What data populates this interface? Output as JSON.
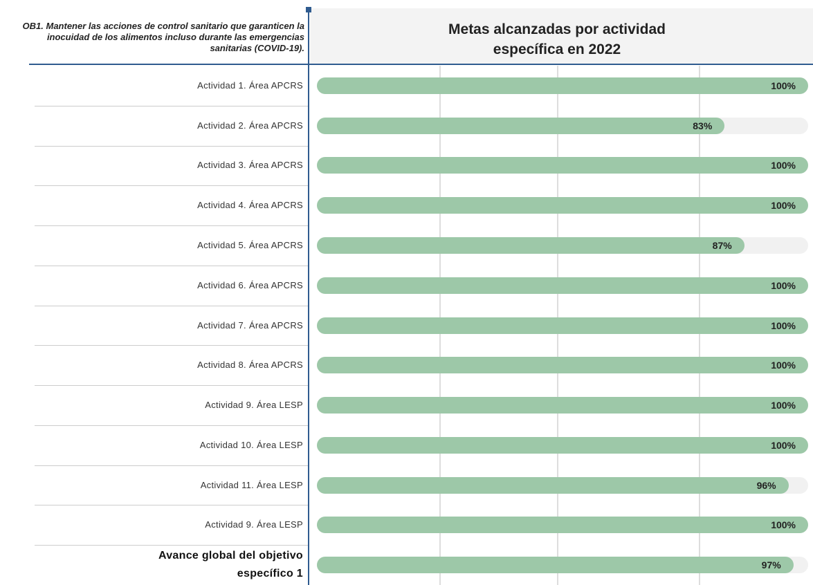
{
  "chart_data": {
    "type": "bar",
    "orientation": "horizontal",
    "subtitle": "OB1. Mantener las acciones de control sanitario que garanticen la inocuidad de los alimentos incluso durante las emergencias sanitarias (COVID-19).",
    "title": "Metas alcanzadas por actividad específica en 2022",
    "categories": [
      "Actividad 1. Área APCRS",
      "Actividad 2. Área APCRS",
      "Actividad 3. Área APCRS",
      "Actividad 4. Área APCRS",
      "Actividad 5. Área APCRS",
      "Actividad 6. Área APCRS",
      "Actividad 7. Área APCRS",
      "Actividad 8. Área APCRS",
      "Actividad 9. Área LESP",
      "Actividad 10. Área LESP",
      "Actividad 11. Área LESP",
      "Actividad 9. Área LESP",
      "Avance global del objetivo específico 1"
    ],
    "values": [
      100,
      83,
      100,
      100,
      87,
      100,
      100,
      100,
      100,
      100,
      96,
      100,
      97
    ],
    "value_labels": [
      "100%",
      "83%",
      "100%",
      "100%",
      "87%",
      "100%",
      "100%",
      "100%",
      "100%",
      "100%",
      "96%",
      "100%",
      "97%"
    ],
    "xlim": [
      0,
      100
    ],
    "color": "#9dc8a8"
  }
}
